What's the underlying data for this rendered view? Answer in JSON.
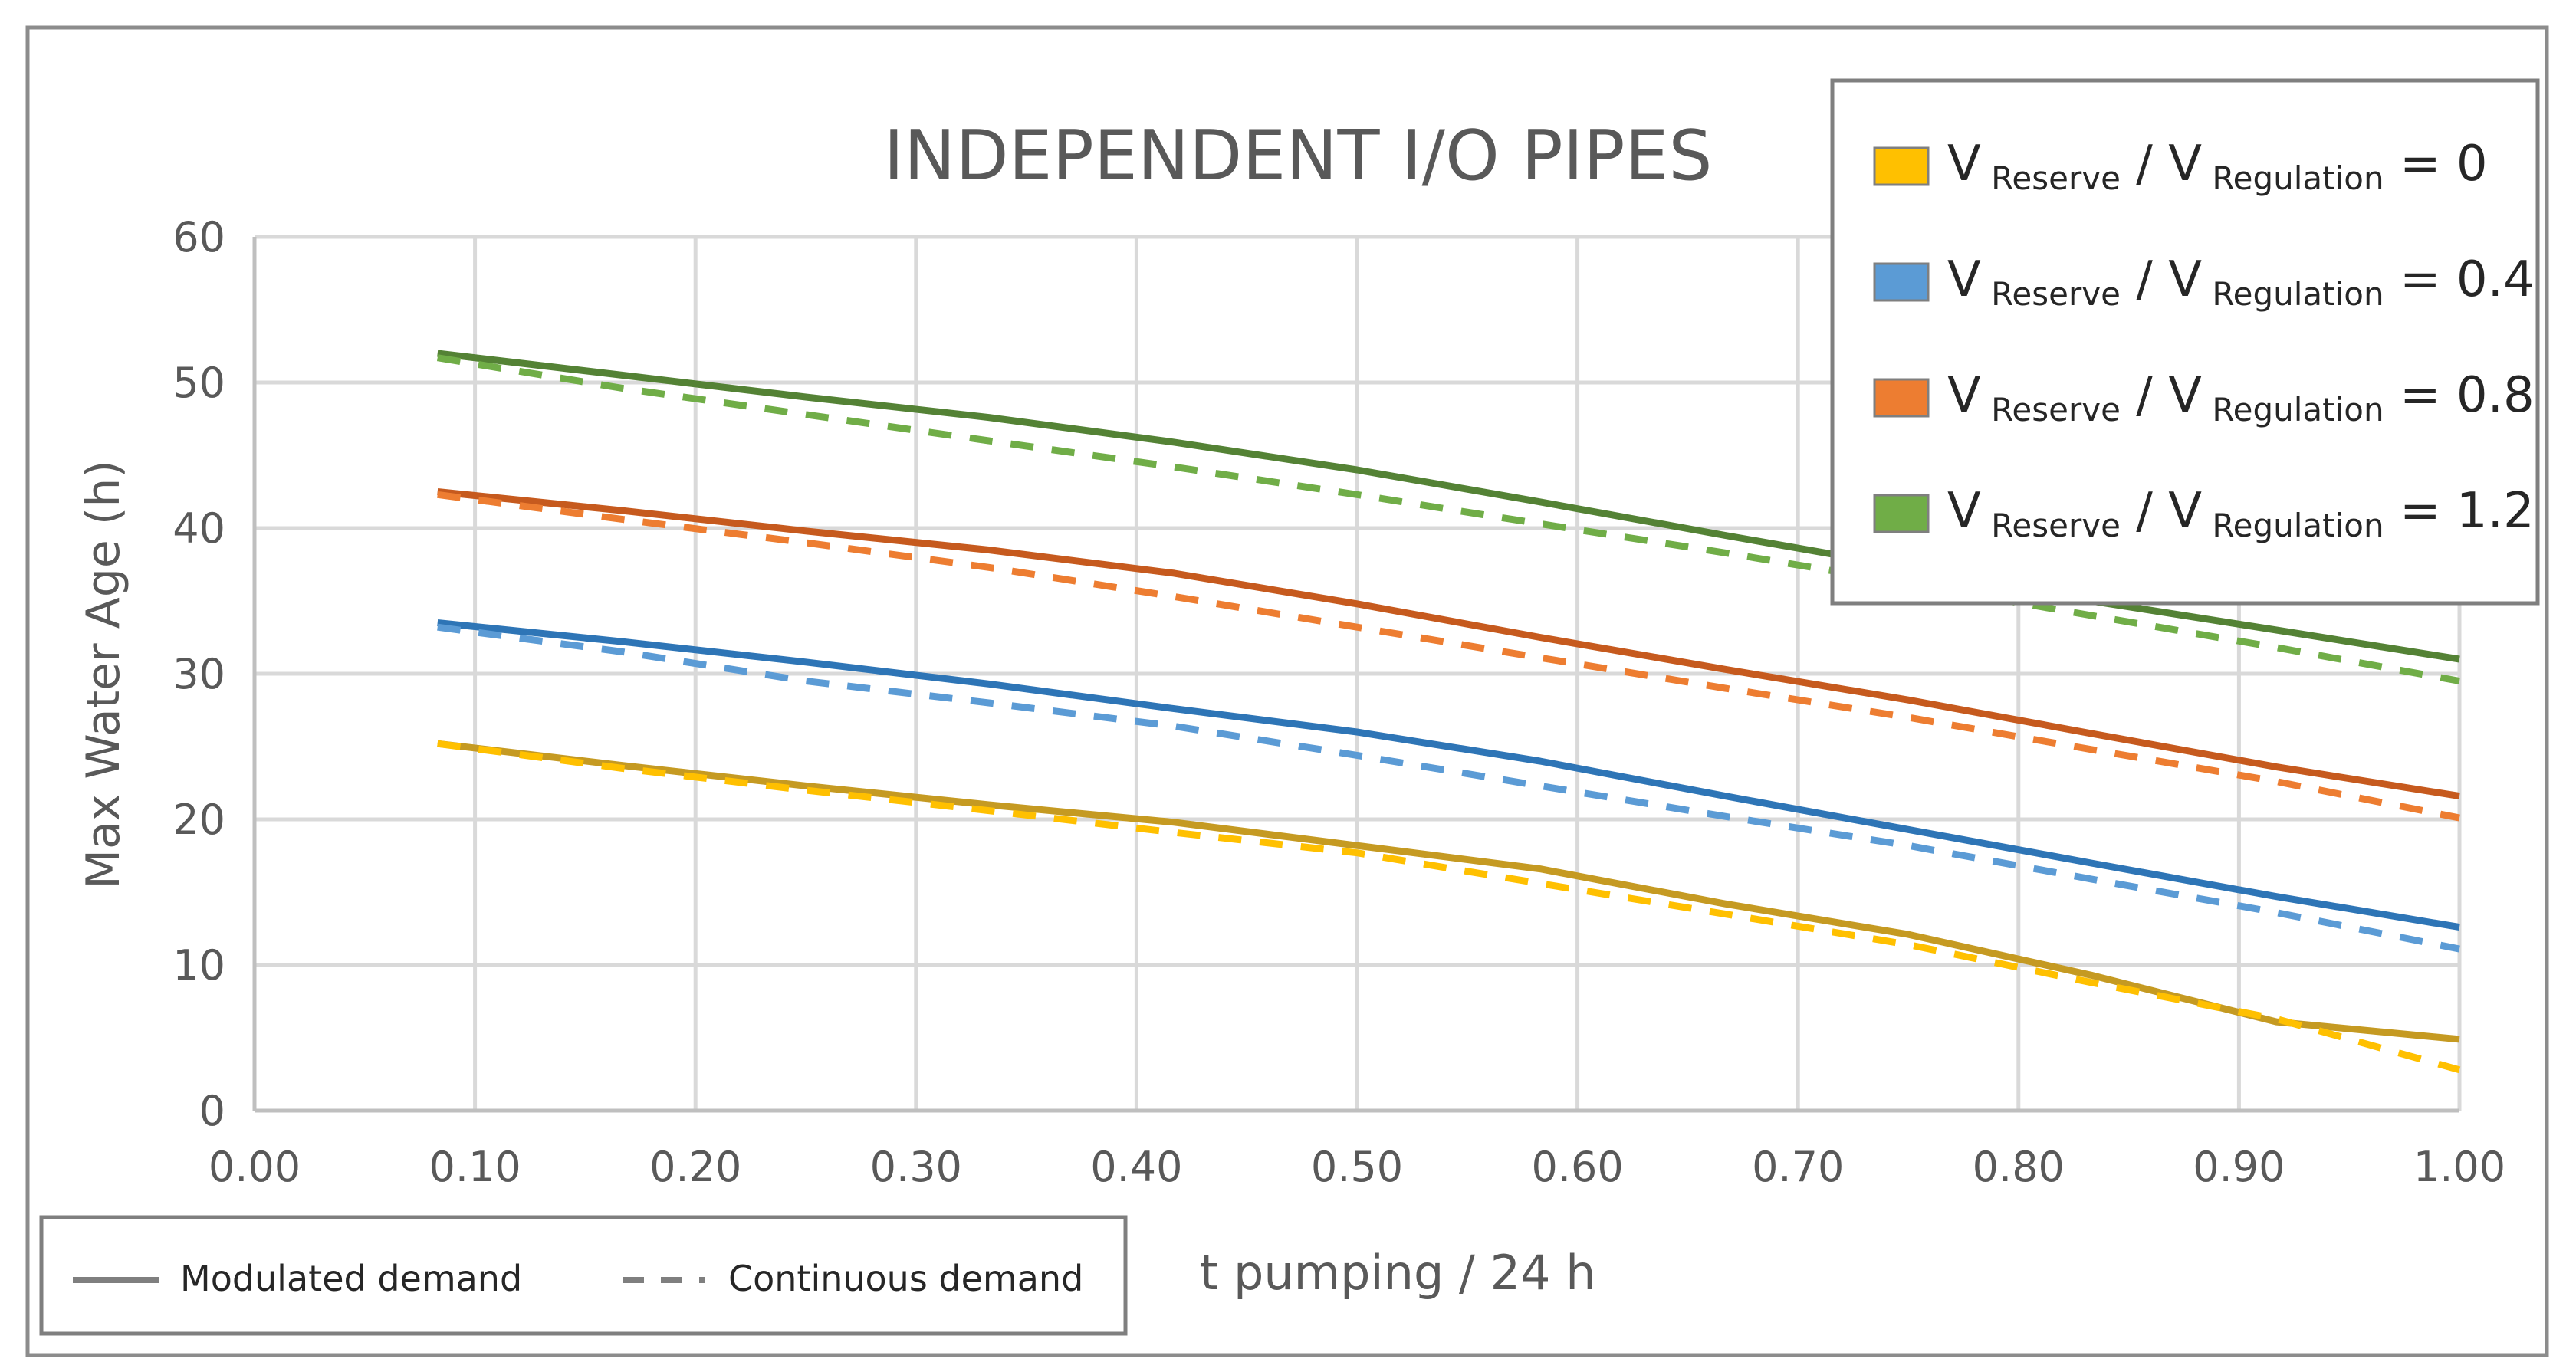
{
  "chart_data": {
    "type": "line",
    "title": "INDEPENDENT I/O PIPES",
    "xlabel": "t pumping / 24 h",
    "ylabel": "Max Water Age (h)",
    "xlim": [
      0,
      1
    ],
    "ylim": [
      0,
      60
    ],
    "xticks": [
      "0.00",
      "0.10",
      "0.20",
      "0.30",
      "0.40",
      "0.50",
      "0.60",
      "0.70",
      "0.80",
      "0.90",
      "1.00"
    ],
    "yticks": [
      "0",
      "10",
      "20",
      "30",
      "40",
      "50",
      "60"
    ],
    "grid": true,
    "x": [
      0.083,
      0.167,
      0.25,
      0.333,
      0.417,
      0.5,
      0.583,
      0.667,
      0.75,
      0.833,
      0.917,
      1.0
    ],
    "legend": {
      "placement": "top-right",
      "entries": [
        {
          "v": "V",
          "sub1": "Reserve",
          "slash": "/",
          "v2": "V",
          "sub2": "Regulation",
          "eq": "= 0",
          "color": "#ffc000"
        },
        {
          "v": "V",
          "sub1": "Reserve",
          "slash": "/",
          "v2": "V",
          "sub2": "Regulation",
          "eq": "= 0.4",
          "color": "#5b9bd5"
        },
        {
          "v": "V",
          "sub1": "Reserve",
          "slash": "/",
          "v2": "V",
          "sub2": "Regulation",
          "eq": "= 0.8",
          "color": "#ed7d31"
        },
        {
          "v": "V",
          "sub1": "Reserve",
          "slash": "/",
          "v2": "V",
          "sub2": "Regulation",
          "eq": "= 1.2",
          "color": "#70ad47"
        }
      ]
    },
    "style_legend": {
      "placement": "bottom-left",
      "solid": "Modulated demand",
      "dashed": "Continuous demand"
    },
    "series": [
      {
        "name": "0 modulated",
        "group": 0,
        "style": "solid",
        "color": "#c59a22",
        "values": [
          25.2,
          23.7,
          22.3,
          21.0,
          19.8,
          18.2,
          16.6,
          14.2,
          12.1,
          9.3,
          6.1,
          4.9
        ]
      },
      {
        "name": "0 continuous",
        "group": 0,
        "style": "dashed",
        "color": "#ffc000",
        "values": [
          25.2,
          23.5,
          22.0,
          20.6,
          19.1,
          17.7,
          15.6,
          13.5,
          11.4,
          8.8,
          6.3,
          2.8
        ]
      },
      {
        "name": "0.4 modulated",
        "group": 1,
        "style": "solid",
        "color": "#2e75b6",
        "values": [
          33.5,
          32.2,
          30.8,
          29.3,
          27.6,
          26.0,
          24.0,
          21.6,
          19.3,
          17.0,
          14.7,
          12.6
        ]
      },
      {
        "name": "0.4 continuous",
        "group": 1,
        "style": "dashed",
        "color": "#5b9bd5",
        "values": [
          33.2,
          31.5,
          29.5,
          28.0,
          26.4,
          24.4,
          22.3,
          20.2,
          18.2,
          15.9,
          13.6,
          11.1
        ]
      },
      {
        "name": "0.8 modulated",
        "group": 2,
        "style": "solid",
        "color": "#c65a1e",
        "values": [
          42.5,
          41.2,
          39.8,
          38.5,
          36.9,
          34.8,
          32.5,
          30.3,
          28.2,
          25.9,
          23.6,
          21.6
        ]
      },
      {
        "name": "0.8 continuous",
        "group": 2,
        "style": "dashed",
        "color": "#ed7d31",
        "values": [
          42.3,
          40.6,
          39.0,
          37.3,
          35.3,
          33.2,
          31.1,
          29.0,
          27.0,
          24.8,
          22.6,
          20.1
        ]
      },
      {
        "name": "1.2 modulated",
        "group": 3,
        "style": "solid",
        "color": "#548235",
        "values": [
          52.0,
          50.5,
          49.0,
          47.6,
          45.9,
          44.0,
          41.8,
          39.5,
          37.3,
          35.0,
          33.0,
          31.0
        ]
      },
      {
        "name": "1.2 continuous",
        "group": 3,
        "style": "dashed",
        "color": "#70ad47",
        "values": [
          51.7,
          49.6,
          47.8,
          46.0,
          44.2,
          42.3,
          40.3,
          38.3,
          36.2,
          34.0,
          31.8,
          29.5
        ]
      }
    ]
  }
}
